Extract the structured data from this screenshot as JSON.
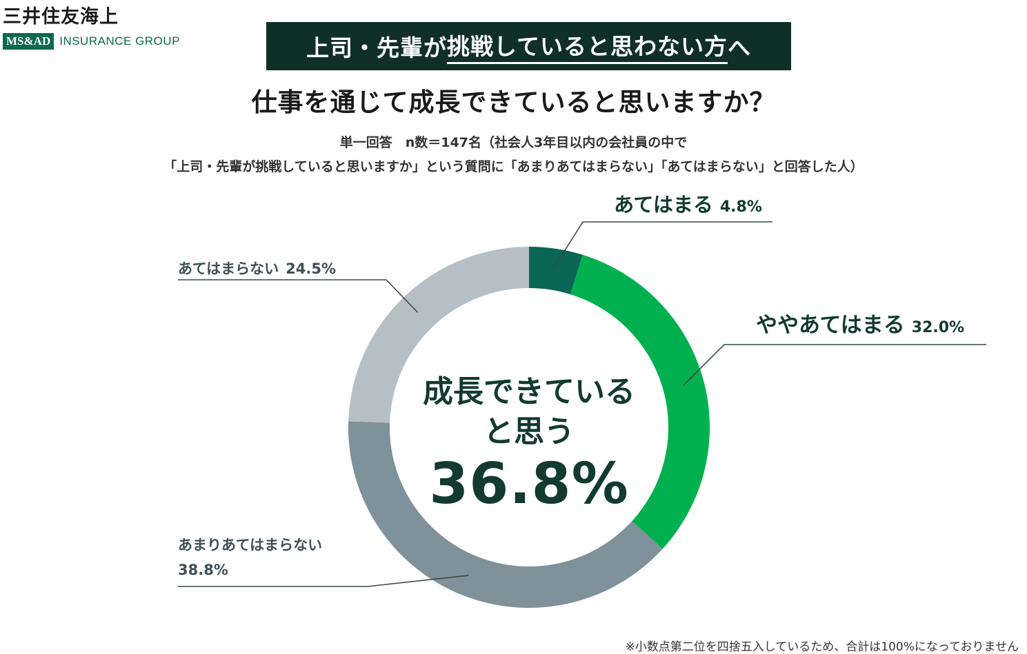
{
  "logo": {
    "company": "三井住友海上",
    "group_mark": "MS&AD",
    "group_text": "INSURANCE GROUP"
  },
  "banner": {
    "pre": "上司・先輩が",
    "underlined": "挑戦していると思わない方",
    "post": "へ"
  },
  "question": "仕事を通じて成長できていると思いますか？",
  "sample_note": "単一回答　n数＝147名（社会人3年目以内の会社員の中で",
  "sample_note_2": "「上司・先輩が挑戦していると思いますか」という質問に「あまりあてはまらない」「あてはまらない」と回答した人）",
  "center": {
    "line1": "成長できている",
    "line2": "と思う",
    "value": "36.8%"
  },
  "footnote": "※小数点第二位を四捨五入しているため、合計は100%になっておりません",
  "chart_data": {
    "type": "pie",
    "donut": true,
    "series": [
      {
        "label": "あてはまる",
        "value": 4.8,
        "value_text": "4.8%",
        "color": "#0a6655"
      },
      {
        "label": "ややあてはまる",
        "value": 32.0,
        "value_text": "32.0%",
        "color": "#00b04f"
      },
      {
        "label": "あまりあてはまらない",
        "value": 38.8,
        "value_text": "38.8%",
        "color": "#7f919a"
      },
      {
        "label": "あてはまらない",
        "value": 24.5,
        "value_text": "24.5%",
        "color": "#b5c0c6"
      }
    ]
  }
}
